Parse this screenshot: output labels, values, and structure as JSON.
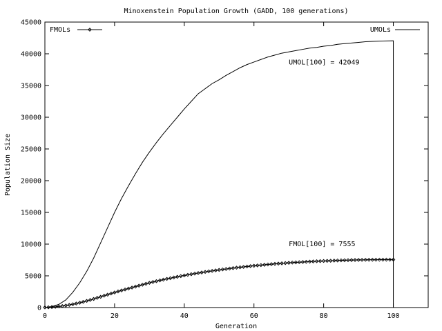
{
  "chart_data": {
    "type": "line",
    "title": "Minoxenstein Population Growth (GADD, 100 generations)",
    "xlabel": "Generation",
    "ylabel": "Population Size",
    "xlim": [
      0,
      110
    ],
    "ylim": [
      0,
      45000
    ],
    "xticks": [
      0,
      20,
      40,
      60,
      80,
      100
    ],
    "yticks": [
      0,
      5000,
      10000,
      15000,
      20000,
      25000,
      30000,
      35000,
      40000,
      45000
    ],
    "grid": false,
    "series": [
      {
        "name": "FMOLs",
        "style": "line-with-diamond-markers",
        "x": [
          0,
          1,
          2,
          3,
          4,
          5,
          6,
          7,
          8,
          9,
          10,
          11,
          12,
          13,
          14,
          15,
          16,
          17,
          18,
          19,
          20,
          21,
          22,
          23,
          24,
          25,
          26,
          27,
          28,
          29,
          30,
          31,
          32,
          33,
          34,
          35,
          36,
          37,
          38,
          39,
          40,
          41,
          42,
          43,
          44,
          45,
          46,
          47,
          48,
          49,
          50,
          51,
          52,
          53,
          54,
          55,
          56,
          57,
          58,
          59,
          60,
          61,
          62,
          63,
          64,
          65,
          66,
          67,
          68,
          69,
          70,
          71,
          72,
          73,
          74,
          75,
          76,
          77,
          78,
          79,
          80,
          81,
          82,
          83,
          84,
          85,
          86,
          87,
          88,
          89,
          90,
          91,
          92,
          93,
          94,
          95,
          96,
          97,
          98,
          99,
          100
        ],
        "y": [
          20,
          40,
          80,
          120,
          180,
          240,
          320,
          420,
          520,
          640,
          760,
          900,
          1050,
          1200,
          1360,
          1530,
          1700,
          1870,
          2040,
          2210,
          2380,
          2540,
          2700,
          2850,
          3000,
          3150,
          3300,
          3450,
          3600,
          3750,
          3900,
          4030,
          4160,
          4280,
          4400,
          4520,
          4630,
          4740,
          4850,
          4960,
          5060,
          5160,
          5260,
          5350,
          5440,
          5530,
          5620,
          5700,
          5780,
          5860,
          5940,
          6010,
          6080,
          6150,
          6220,
          6290,
          6350,
          6410,
          6470,
          6530,
          6590,
          6640,
          6690,
          6740,
          6790,
          6840,
          6890,
          6930,
          6970,
          7010,
          7050,
          7090,
          7120,
          7150,
          7180,
          7210,
          7240,
          7270,
          7300,
          7320,
          7340,
          7360,
          7380,
          7400,
          7420,
          7440,
          7455,
          7470,
          7485,
          7500,
          7510,
          7520,
          7530,
          7535,
          7540,
          7545,
          7548,
          7550,
          7552,
          7554,
          7555
        ]
      },
      {
        "name": "UMOLs",
        "style": "line",
        "x": [
          0,
          2,
          4,
          6,
          8,
          10,
          12,
          14,
          16,
          18,
          20,
          22,
          24,
          26,
          28,
          30,
          32,
          34,
          36,
          38,
          40,
          42,
          44,
          46,
          48,
          50,
          52,
          54,
          56,
          58,
          60,
          62,
          64,
          66,
          68,
          70,
          72,
          74,
          76,
          78,
          80,
          82,
          84,
          86,
          88,
          90,
          92,
          94,
          96,
          98,
          100,
          100
        ],
        "y": [
          0,
          150,
          500,
          1200,
          2400,
          3900,
          5700,
          7800,
          10200,
          12600,
          15000,
          17200,
          19200,
          21100,
          22900,
          24500,
          26000,
          27400,
          28700,
          30000,
          31300,
          32500,
          33700,
          34500,
          35300,
          35900,
          36600,
          37200,
          37800,
          38300,
          38700,
          39100,
          39500,
          39800,
          40100,
          40300,
          40500,
          40700,
          40900,
          41000,
          41200,
          41300,
          41500,
          41600,
          41700,
          41800,
          41900,
          41950,
          42000,
          42020,
          42049,
          0
        ]
      }
    ],
    "legend": {
      "entries": [
        {
          "label": "FMOLs",
          "position": "top-left"
        },
        {
          "label": "UMOLs",
          "position": "top-right"
        }
      ]
    },
    "annotations": [
      {
        "text": "UMOL[100] = 42049",
        "x": 70,
        "y": 38300
      },
      {
        "text": "FMOL[100] = 7555",
        "x": 70,
        "y": 9700
      }
    ]
  }
}
